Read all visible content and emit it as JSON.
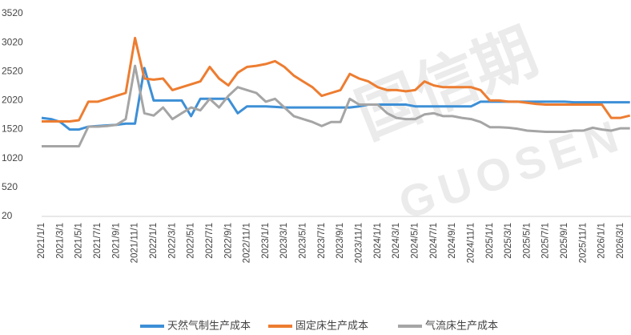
{
  "chart_data": {
    "type": "line",
    "categories": [
      "2021/1/1",
      null,
      "2021/3/1",
      null,
      "2021/5/1",
      null,
      "2021/7/1",
      null,
      "2021/9/1",
      null,
      "2021/11/1",
      null,
      "2022/1/1",
      null,
      "2022/3/1",
      null,
      "2022/5/1",
      null,
      "2022/7/1",
      null,
      "2022/9/1",
      null,
      "2022/11/1",
      null,
      "2023/1/1",
      null,
      "2023/3/1",
      null,
      "2023/5/1",
      null,
      "2023/7/1",
      null,
      "2023/9/1",
      null,
      "2023/11/1",
      null,
      "2024/1/1",
      null,
      "2024/3/1",
      null,
      "2024/5/1",
      null,
      "2024/7/1",
      null,
      "2024/9/1",
      null,
      "2024/11/1",
      null,
      "2025/1/1",
      null,
      "2025/3/1",
      null,
      "2025/5/1",
      null,
      "2025/7/1",
      null,
      "2025/9/1",
      null,
      "2025/11/1",
      null,
      "2026/1/1",
      null,
      "2026/3/1",
      null
    ],
    "series": [
      {
        "name": "天然气制生产成本",
        "color": "#3d8fd6",
        "values": [
          1720,
          1700,
          1650,
          1520,
          1520,
          1570,
          1580,
          1590,
          1600,
          1620,
          1620,
          2580,
          2020,
          2020,
          2020,
          2020,
          1750,
          2050,
          2050,
          2050,
          2050,
          1800,
          1920,
          1920,
          1920,
          1910,
          1900,
          1900,
          1900,
          1900,
          1900,
          1900,
          1900,
          1900,
          1920,
          1950,
          1950,
          1950,
          1950,
          1950,
          1920,
          1920,
          1920,
          1920,
          1920,
          1920,
          1920,
          2000,
          2000,
          2000,
          2000,
          2000,
          2000,
          2000,
          2000,
          2000,
          2000,
          1990,
          1990,
          1990,
          1990,
          1990,
          1990,
          1990
        ]
      },
      {
        "name": "固定床生产成本",
        "color": "#ed7d31",
        "values": [
          1660,
          1660,
          1660,
          1660,
          1680,
          2000,
          2000,
          2050,
          2100,
          2150,
          3100,
          2400,
          2380,
          2400,
          2200,
          2250,
          2300,
          2350,
          2600,
          2400,
          2280,
          2500,
          2600,
          2620,
          2650,
          2700,
          2600,
          2450,
          2350,
          2250,
          2100,
          2150,
          2200,
          2480,
          2400,
          2350,
          2250,
          2200,
          2200,
          2180,
          2200,
          2350,
          2280,
          2250,
          2250,
          2250,
          2250,
          2200,
          2020,
          2020,
          2000,
          2000,
          1980,
          1960,
          1950,
          1950,
          1950,
          1950,
          1950,
          1950,
          1950,
          1720,
          1720,
          1760
        ]
      },
      {
        "name": "气流床生产成本",
        "color": "#a5a5a5",
        "values": [
          1230,
          1230,
          1230,
          1230,
          1230,
          1570,
          1570,
          1580,
          1600,
          1700,
          2620,
          1800,
          1760,
          1900,
          1700,
          1800,
          1900,
          1850,
          2050,
          1900,
          2100,
          2250,
          2200,
          2150,
          2000,
          2050,
          1900,
          1750,
          1700,
          1650,
          1580,
          1650,
          1650,
          2050,
          1950,
          1950,
          1950,
          1800,
          1720,
          1700,
          1700,
          1780,
          1800,
          1750,
          1750,
          1720,
          1700,
          1650,
          1560,
          1560,
          1550,
          1530,
          1500,
          1490,
          1480,
          1480,
          1480,
          1500,
          1500,
          1550,
          1520,
          1500,
          1540,
          1540
        ]
      }
    ],
    "ylim": [
      20,
      3520
    ],
    "yticks": [
      20,
      520,
      1020,
      1520,
      2020,
      2520,
      3020,
      3520
    ],
    "grid": false,
    "legend": "bottom",
    "watermark": {
      "cn": "国信期",
      "en": "GUOSEN"
    }
  }
}
